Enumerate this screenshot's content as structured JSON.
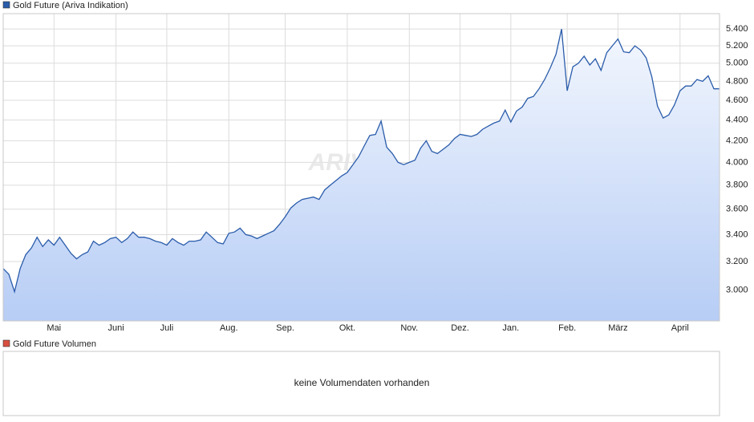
{
  "chart_data": [
    {
      "type": "line",
      "watermark": "ARIVA",
      "log_scale": true,
      "grid": true,
      "categories": [
        null,
        null,
        null,
        null,
        null,
        null,
        null,
        null,
        null,
        "Mai",
        null,
        null,
        null,
        null,
        null,
        null,
        null,
        null,
        null,
        null,
        "Juni",
        null,
        null,
        null,
        null,
        null,
        null,
        null,
        null,
        "Juli",
        null,
        null,
        null,
        null,
        null,
        null,
        null,
        null,
        null,
        null,
        "Aug.",
        null,
        null,
        null,
        null,
        null,
        null,
        null,
        null,
        null,
        "Sep.",
        null,
        null,
        null,
        null,
        null,
        null,
        null,
        null,
        null,
        null,
        "Okt.",
        null,
        null,
        null,
        null,
        null,
        null,
        null,
        null,
        null,
        null,
        "Nov.",
        null,
        null,
        null,
        null,
        null,
        null,
        null,
        null,
        "Dez.",
        null,
        null,
        null,
        null,
        null,
        null,
        null,
        null,
        "Jan.",
        null,
        null,
        null,
        null,
        null,
        null,
        null,
        null,
        null,
        "Feb.",
        null,
        null,
        null,
        null,
        null,
        null,
        null,
        null,
        "März",
        null,
        null,
        null,
        null,
        null,
        null,
        null,
        null,
        null,
        null,
        "April",
        null,
        null,
        null,
        null,
        null,
        null,
        null
      ],
      "series": [
        {
          "name": "Gold Future (Ariva Indikation)",
          "color": "#2a5caa",
          "values": [
            3150,
            3110,
            2990,
            3150,
            3250,
            3300,
            3380,
            3310,
            3360,
            3320,
            3380,
            3320,
            3260,
            3220,
            3250,
            3270,
            3350,
            3320,
            3340,
            3370,
            3380,
            3340,
            3370,
            3420,
            3380,
            3380,
            3370,
            3350,
            3340,
            3320,
            3370,
            3340,
            3320,
            3350,
            3350,
            3360,
            3420,
            3380,
            3340,
            3330,
            3410,
            3420,
            3450,
            3400,
            3390,
            3370,
            3390,
            3410,
            3430,
            3480,
            3540,
            3610,
            3650,
            3680,
            3690,
            3700,
            3680,
            3760,
            3800,
            3840,
            3880,
            3910,
            3980,
            4050,
            4150,
            4250,
            4260,
            4390,
            4140,
            4080,
            4000,
            3980,
            4000,
            4020,
            4130,
            4200,
            4100,
            4080,
            4120,
            4160,
            4220,
            4260,
            4250,
            4240,
            4260,
            4310,
            4340,
            4370,
            4390,
            4500,
            4380,
            4490,
            4530,
            4620,
            4640,
            4720,
            4820,
            4950,
            5100,
            5400,
            4700,
            4960,
            5000,
            5080,
            4980,
            5050,
            4920,
            5120,
            5200,
            5280,
            5130,
            5120,
            5200,
            5150,
            5060,
            4850,
            4540,
            4420,
            4450,
            4550,
            4700,
            4750,
            4750,
            4820,
            4800,
            4860,
            4720,
            4720
          ]
        }
      ],
      "ylim": [
        2800,
        5590
      ],
      "yticks": [
        {
          "value": 3000,
          "label": "3.000"
        },
        {
          "value": 3200,
          "label": "3.200"
        },
        {
          "value": 3400,
          "label": "3.400"
        },
        {
          "value": 3600,
          "label": "3.600"
        },
        {
          "value": 3800,
          "label": "3.800"
        },
        {
          "value": 4000,
          "label": "4.000"
        },
        {
          "value": 4200,
          "label": "4.200"
        },
        {
          "value": 4400,
          "label": "4.400"
        },
        {
          "value": 4600,
          "label": "4.600"
        },
        {
          "value": 4800,
          "label": "4.800"
        },
        {
          "value": 5000,
          "label": "5.000"
        },
        {
          "value": 5200,
          "label": "5.200"
        },
        {
          "value": 5400,
          "label": "5.400"
        }
      ]
    },
    {
      "type": "empty",
      "series": [
        {
          "name": "Gold Future Volumen",
          "color": "#d9503f"
        }
      ],
      "message": "keine Volumendaten vorhanden"
    }
  ]
}
